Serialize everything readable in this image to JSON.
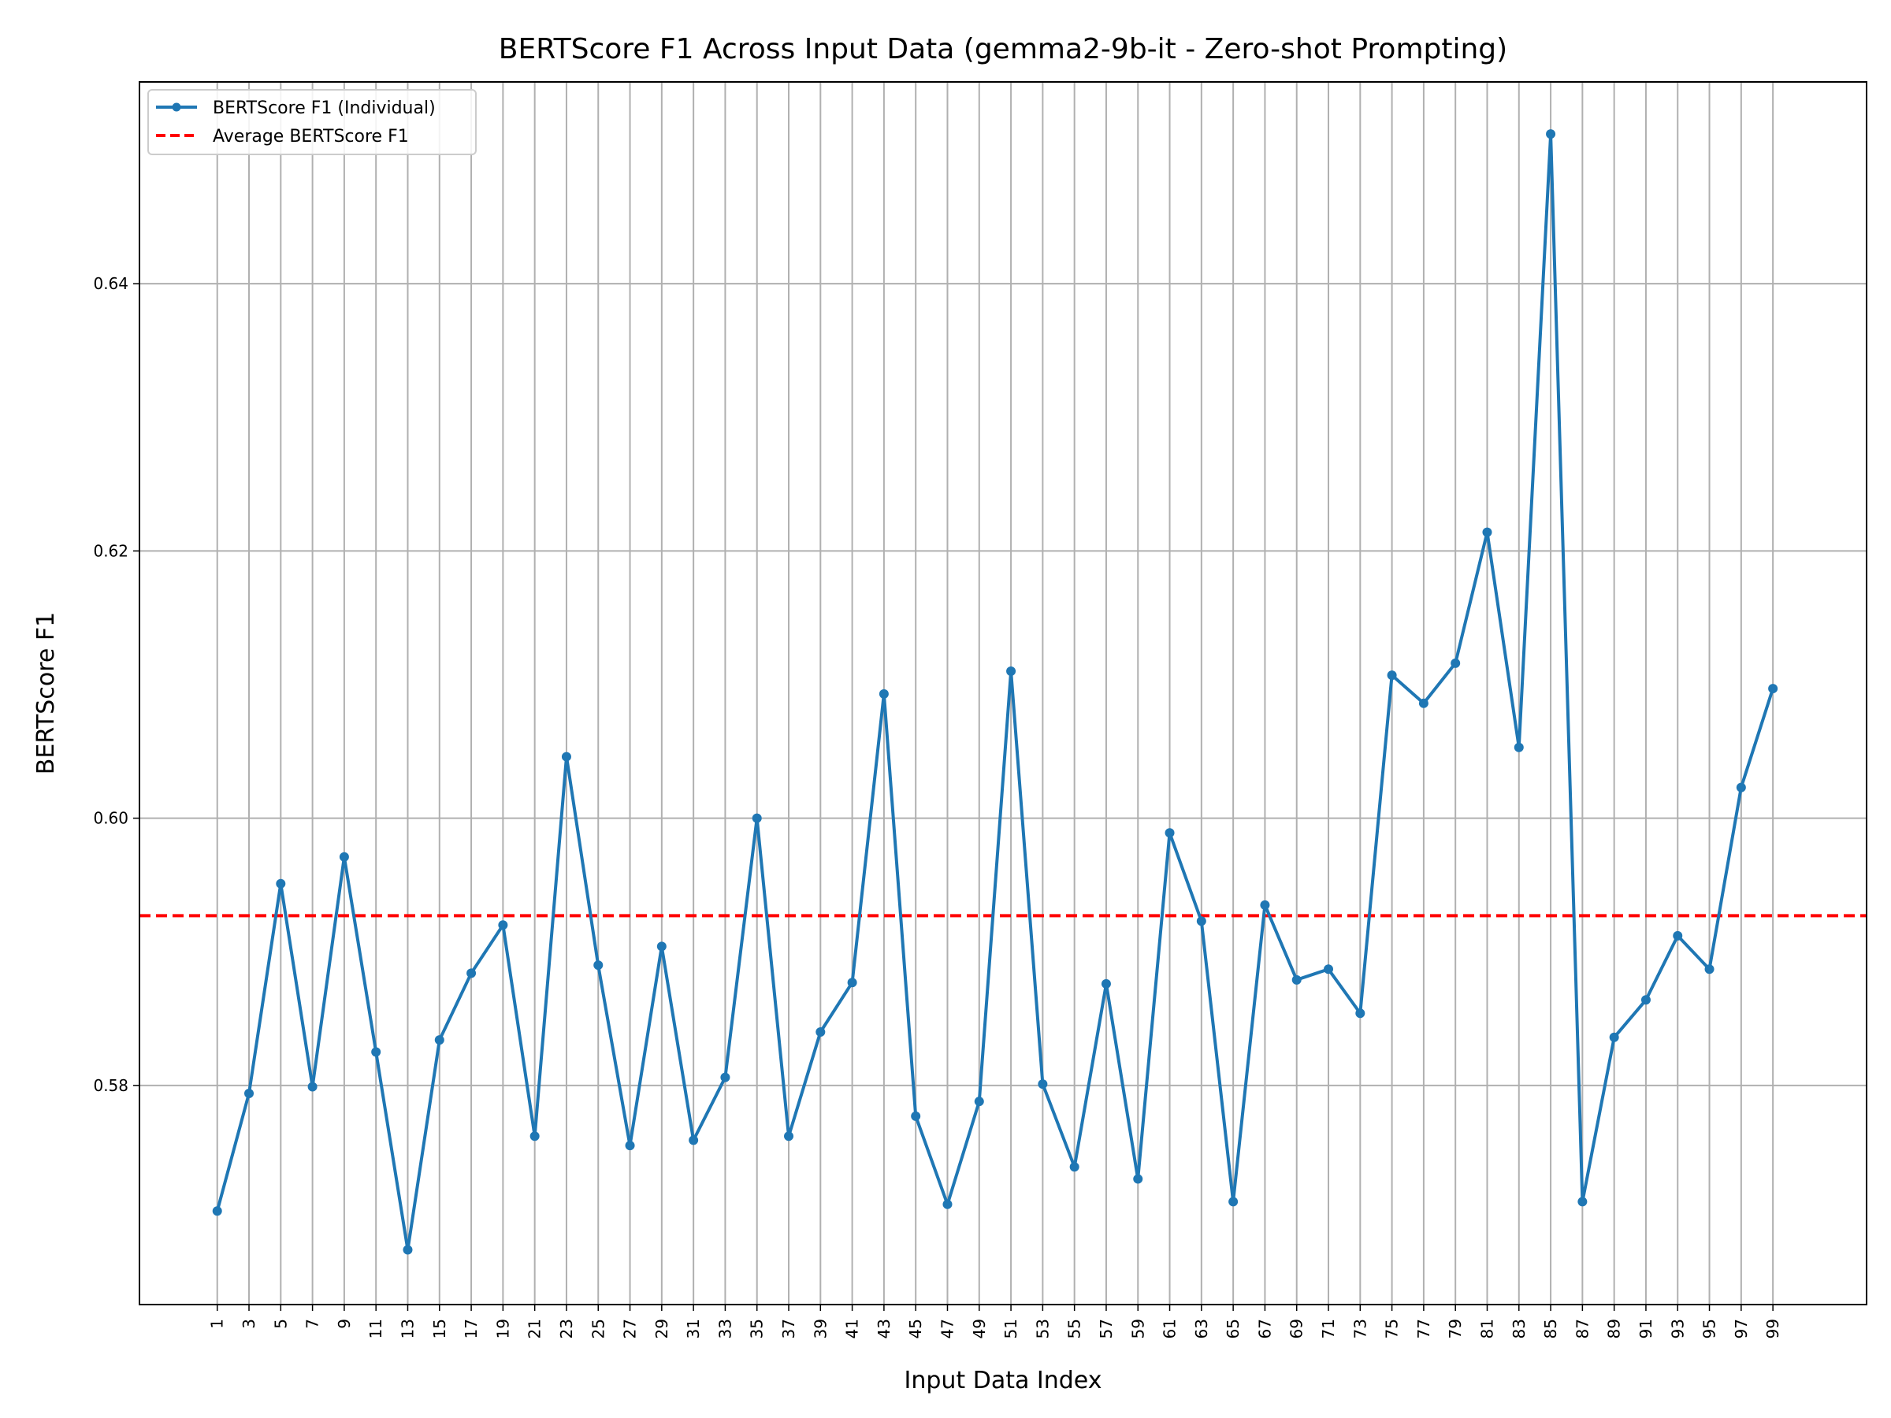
{
  "chart_data": {
    "type": "line",
    "title": "BERTScore F1 Across Input Data (gemma2-9b-it - Zero-shot Prompting)",
    "xlabel": "Input Data Index",
    "ylabel": "BERTScore F1",
    "x": [
      1,
      3,
      5,
      7,
      9,
      11,
      13,
      15,
      17,
      19,
      21,
      23,
      25,
      27,
      29,
      31,
      33,
      35,
      37,
      39,
      41,
      43,
      45,
      47,
      49,
      51,
      53,
      55,
      57,
      59,
      61,
      63,
      65,
      67,
      69,
      71,
      73,
      75,
      77,
      79,
      81,
      83,
      85,
      87,
      89,
      91,
      93,
      95,
      97,
      99
    ],
    "xlim": [
      -3.9,
      104.9
    ],
    "ylim": [
      0.5636,
      0.6551
    ],
    "yticks": [
      0.58,
      0.6,
      0.62,
      0.64
    ],
    "ytick_labels": [
      "0.58",
      "0.60",
      "0.62",
      "0.64"
    ],
    "grid": true,
    "legend_position": "upper-left",
    "series": [
      {
        "name": "BERTScore F1 (Individual)",
        "color": "#1f77b4",
        "style": "solid-with-markers",
        "values": [
          0.5706,
          0.5794,
          0.5951,
          0.5799,
          0.5971,
          0.5825,
          0.5677,
          0.5834,
          0.5884,
          0.592,
          0.5762,
          0.6046,
          0.589,
          0.5755,
          0.5904,
          0.5759,
          0.5806,
          0.6,
          0.5762,
          0.584,
          0.5877,
          0.6093,
          0.5777,
          0.5711,
          0.5788,
          0.611,
          0.5801,
          0.5739,
          0.5876,
          0.573,
          0.5989,
          0.5923,
          0.5713,
          0.5935,
          0.5879,
          0.5887,
          0.5854,
          0.6107,
          0.6086,
          0.6116,
          0.6214,
          0.6053,
          0.6512,
          0.5713,
          0.5836,
          0.5864,
          0.5912,
          0.5887,
          0.6023,
          0.6097
        ]
      },
      {
        "name": "Average BERTScore F1",
        "color": "#ff0000",
        "style": "dashed",
        "value": 0.5927
      }
    ]
  }
}
